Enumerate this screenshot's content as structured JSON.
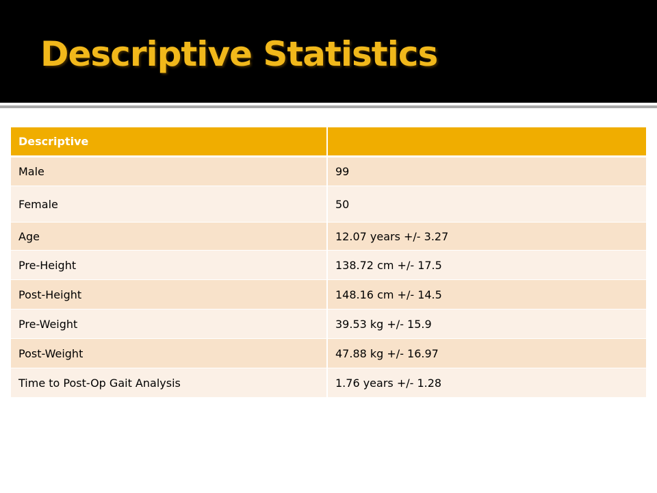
{
  "slide": {
    "title": "Descriptive Statistics"
  },
  "table": {
    "headers": [
      "Descriptive",
      ""
    ],
    "rows": [
      [
        "Male",
        "99"
      ],
      [
        "Female",
        "50"
      ],
      [
        "Age",
        "12.07 years +/- 3.27"
      ],
      [
        "Pre-Height",
        "138.72 cm  +/- 17.5"
      ],
      [
        "Post-Height",
        "148.16 cm +/- 14.5"
      ],
      [
        "Pre-Weight",
        "39.53 kg +/- 15.9"
      ],
      [
        "Post-Weight",
        "47.88 kg +/- 16.97"
      ],
      [
        "Time to Post-Op Gait Analysis",
        "1.76 years +/- 1.28"
      ]
    ]
  },
  "colors": {
    "title_bar": "#000000",
    "title_text": "#f1b81b",
    "header_fill": "#f0ad00",
    "row_fill_dark": "#f8e2ca",
    "row_fill_light": "#fbf0e6",
    "divider": "#a9a9a9"
  }
}
